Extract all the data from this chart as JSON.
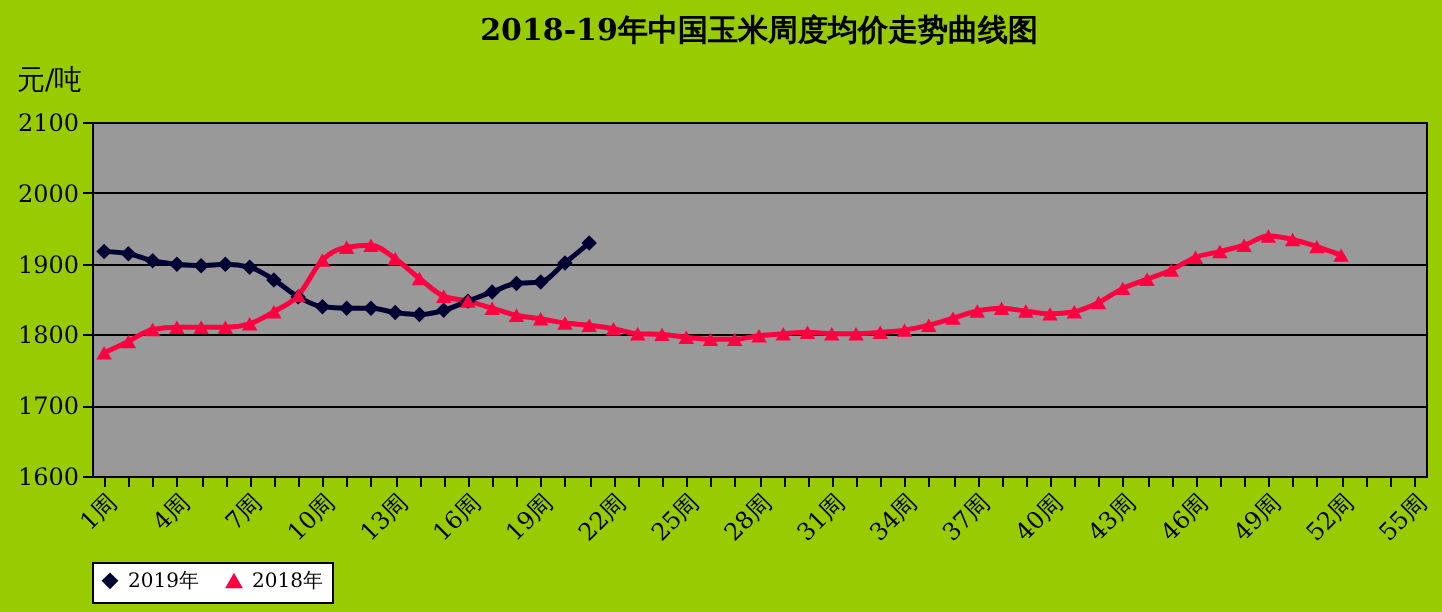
{
  "chart_data": {
    "type": "line",
    "title": "2018-19年中国玉米周度均价走势曲线图",
    "ylabel": "元/吨",
    "categories": [
      "1周",
      null,
      null,
      "4周",
      null,
      null,
      "7周",
      null,
      null,
      "10周",
      null,
      null,
      "13周",
      null,
      null,
      "16周",
      null,
      null,
      "19周",
      null,
      null,
      "22周",
      null,
      null,
      "25周",
      null,
      null,
      "28周",
      null,
      null,
      "31周",
      null,
      null,
      "34周",
      null,
      null,
      "37周",
      null,
      null,
      "40周",
      null,
      null,
      "43周",
      null,
      null,
      "46周",
      null,
      null,
      "49周",
      null,
      null,
      "52周",
      null,
      null,
      "55周"
    ],
    "series": [
      {
        "name": "2019年",
        "color": "#000033",
        "marker": "diamond",
        "values": [
          1917,
          1914,
          1904,
          1899,
          1897,
          1899,
          1895,
          1877,
          1853,
          1839,
          1837,
          1837,
          1831,
          1828,
          1834,
          1847,
          1860,
          1872,
          1874,
          1901,
          1929,
          null,
          null,
          null,
          null,
          null,
          null,
          null,
          null,
          null,
          null,
          null,
          null,
          null,
          null,
          null,
          null,
          null,
          null,
          null,
          null,
          null,
          null,
          null,
          null,
          null,
          null,
          null,
          null,
          null,
          null,
          null,
          null,
          null,
          null
        ]
      },
      {
        "name": "2018年",
        "color": "#ff0040",
        "marker": "triangle",
        "values": [
          1774,
          1790,
          1807,
          1810,
          1810,
          1810,
          1815,
          1832,
          1855,
          1905,
          1923,
          1926,
          1907,
          1879,
          1854,
          1847,
          1837,
          1827,
          1822,
          1816,
          1813,
          1808,
          1801,
          1800,
          1796,
          1793,
          1793,
          1798,
          1801,
          1803,
          1801,
          1801,
          1803,
          1806,
          1813,
          1823,
          1833,
          1837,
          1833,
          1829,
          1832,
          1845,
          1865,
          1878,
          1891,
          1909,
          1917,
          1926,
          1939,
          1934,
          1924,
          1912,
          null,
          null,
          null
        ]
      }
    ],
    "ylim": [
      1600,
      2100
    ],
    "yticks": [
      1600,
      1700,
      1800,
      1900,
      2000,
      2100
    ],
    "grid": "y",
    "legend": "bottom",
    "line_style": "solid"
  }
}
